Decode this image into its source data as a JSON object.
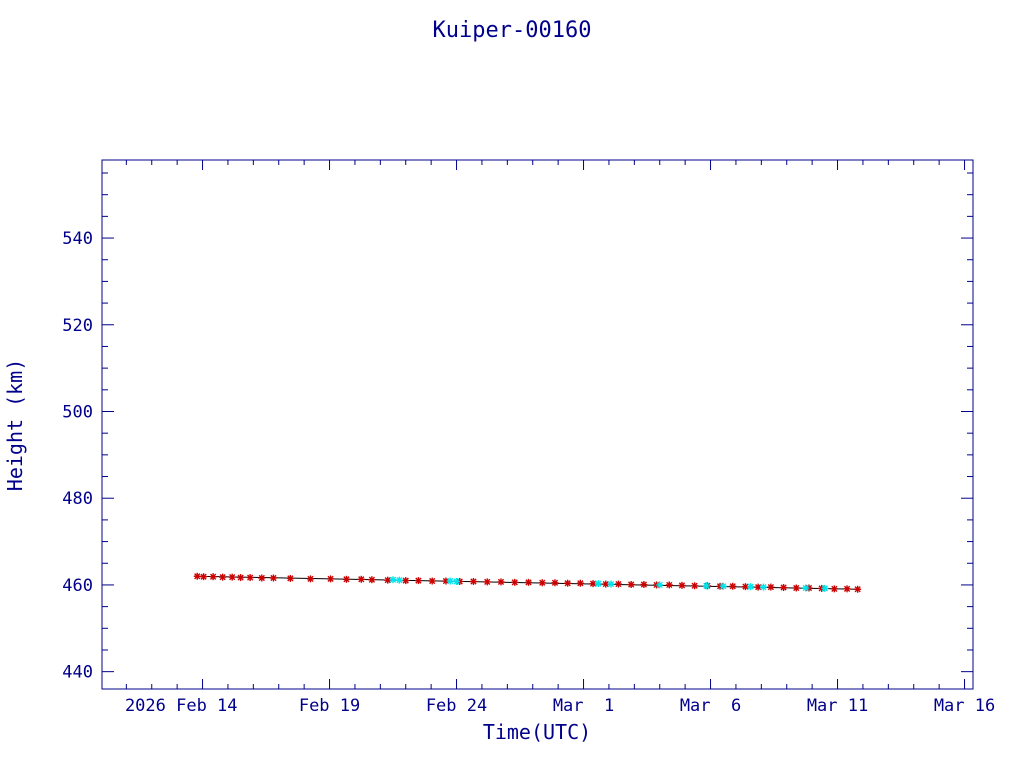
{
  "chart_data": {
    "type": "scatter",
    "title": "Kuiper-00160",
    "xlabel": "Time(UTC)",
    "ylabel": "Height (km)",
    "x_ticks": [
      {
        "date": "2026-02-14",
        "label": "2026 Feb 14"
      },
      {
        "date": "2026-02-19",
        "label": "Feb 19"
      },
      {
        "date": "2026-02-24",
        "label": "Feb 24"
      },
      {
        "date": "2026-03-01",
        "label": "Mar  1"
      },
      {
        "date": "2026-03-06",
        "label": "Mar  6"
      },
      {
        "date": "2026-03-11",
        "label": "Mar 11"
      },
      {
        "date": "2026-03-16",
        "label": "Mar 16"
      }
    ],
    "xlim": [
      "2026-02-10T01:00",
      "2026-03-16T08:00"
    ],
    "y_ticks": [
      440,
      460,
      480,
      500,
      520,
      540
    ],
    "ylim": [
      436,
      558
    ],
    "grid": false,
    "colors": {
      "axis": "#00008b",
      "text": "#00008b",
      "line": "#000000"
    },
    "series": [
      {
        "marker": "star",
        "color": "#cc0000",
        "points": [
          [
            "2026-02-13T19:00",
            462.0
          ],
          [
            "2026-02-14T01:00",
            461.9
          ],
          [
            "2026-02-14T10:00",
            461.9
          ],
          [
            "2026-02-14T19:00",
            461.8
          ],
          [
            "2026-02-15T04:00",
            461.8
          ],
          [
            "2026-02-15T12:00",
            461.7
          ],
          [
            "2026-02-15T21:00",
            461.7
          ],
          [
            "2026-02-16T08:00",
            461.6
          ],
          [
            "2026-02-16T19:00",
            461.6
          ],
          [
            "2026-02-17T11:00",
            461.5
          ],
          [
            "2026-02-18T06:00",
            461.4
          ],
          [
            "2026-02-19T01:00",
            461.4
          ],
          [
            "2026-02-19T16:00",
            461.3
          ],
          [
            "2026-02-20T06:00",
            461.3
          ],
          [
            "2026-02-20T16:00",
            461.2
          ],
          [
            "2026-02-21T07:00",
            461.1
          ],
          [
            "2026-02-22T00:00",
            461.0
          ],
          [
            "2026-02-22T12:00",
            461.0
          ],
          [
            "2026-02-23T01:00",
            460.9
          ],
          [
            "2026-02-23T14:00",
            460.9
          ],
          [
            "2026-02-24T03:00",
            460.8
          ],
          [
            "2026-02-24T16:00",
            460.8
          ],
          [
            "2026-02-25T05:00",
            460.7
          ],
          [
            "2026-02-25T18:00",
            460.7
          ],
          [
            "2026-02-26T07:00",
            460.6
          ],
          [
            "2026-02-26T20:00",
            460.6
          ],
          [
            "2026-02-27T09:00",
            460.5
          ],
          [
            "2026-02-27T21:00",
            460.5
          ],
          [
            "2026-02-28T09:00",
            460.4
          ],
          [
            "2026-02-28T21:00",
            460.4
          ],
          [
            "2026-03-01T09:00",
            460.3
          ],
          [
            "2026-03-01T21:00",
            460.2
          ],
          [
            "2026-03-02T09:00",
            460.2
          ],
          [
            "2026-03-02T21:00",
            460.1
          ],
          [
            "2026-03-03T09:00",
            460.1
          ],
          [
            "2026-03-03T21:00",
            460.0
          ],
          [
            "2026-03-04T09:00",
            460.0
          ],
          [
            "2026-03-04T21:00",
            459.9
          ],
          [
            "2026-03-05T09:00",
            459.8
          ],
          [
            "2026-03-05T21:00",
            459.8
          ],
          [
            "2026-03-06T09:00",
            459.7
          ],
          [
            "2026-03-06T21:00",
            459.7
          ],
          [
            "2026-03-07T09:00",
            459.6
          ],
          [
            "2026-03-07T21:00",
            459.5
          ],
          [
            "2026-03-08T09:00",
            459.5
          ],
          [
            "2026-03-08T21:00",
            459.4
          ],
          [
            "2026-03-09T09:00",
            459.3
          ],
          [
            "2026-03-09T21:00",
            459.3
          ],
          [
            "2026-03-10T09:00",
            459.2
          ],
          [
            "2026-03-10T21:00",
            459.1
          ],
          [
            "2026-03-11T09:00",
            459.1
          ],
          [
            "2026-03-11T19:00",
            459.0
          ]
        ]
      },
      {
        "marker": "star",
        "color": "#00e5ee",
        "points": [
          [
            "2026-02-21T12:00",
            461.2
          ],
          [
            "2026-02-21T18:00",
            461.1
          ],
          [
            "2026-02-23T18:00",
            460.9
          ],
          [
            "2026-02-24T00:00",
            460.8
          ],
          [
            "2026-03-01T14:00",
            460.3
          ],
          [
            "2026-03-02T02:00",
            460.2
          ],
          [
            "2026-03-04T00:00",
            460.0
          ],
          [
            "2026-03-05T20:00",
            459.8
          ],
          [
            "2026-03-06T12:00",
            459.7
          ],
          [
            "2026-03-07T14:00",
            459.6
          ],
          [
            "2026-03-08T02:00",
            459.5
          ],
          [
            "2026-03-09T18:00",
            459.3
          ],
          [
            "2026-03-10T12:00",
            459.2
          ]
        ]
      }
    ],
    "trend_line": [
      [
        "2026-02-13T19:00",
        462.0
      ],
      [
        "2026-03-11T19:00",
        459.0
      ]
    ]
  }
}
